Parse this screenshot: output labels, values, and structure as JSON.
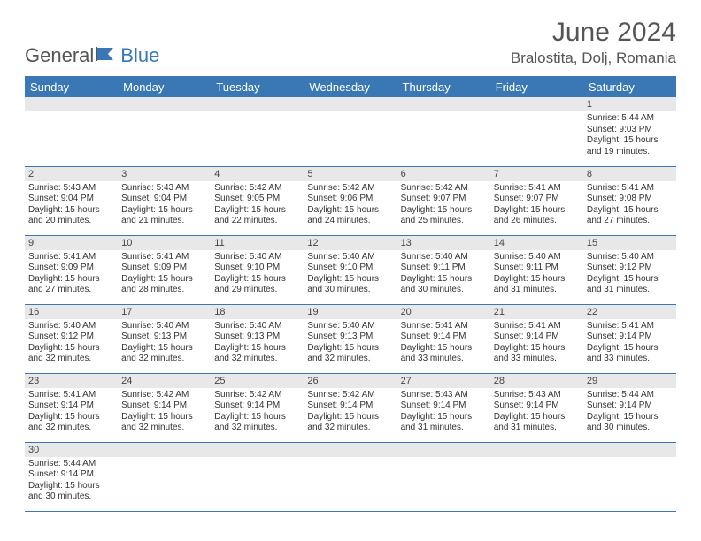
{
  "logo": {
    "text1": "General",
    "text2": "Blue"
  },
  "title": "June 2024",
  "location": "Bralostita, Dolj, Romania",
  "header_bg": "#3a78b5",
  "header_fg": "#ffffff",
  "daynum_bg": "#e8e8e8",
  "border_color": "#3a78b5",
  "weekdays": [
    "Sunday",
    "Monday",
    "Tuesday",
    "Wednesday",
    "Thursday",
    "Friday",
    "Saturday"
  ],
  "weeks": [
    [
      null,
      null,
      null,
      null,
      null,
      null,
      {
        "n": "1",
        "sr": "Sunrise: 5:44 AM",
        "ss": "Sunset: 9:03 PM",
        "d1": "Daylight: 15 hours",
        "d2": "and 19 minutes."
      }
    ],
    [
      {
        "n": "2",
        "sr": "Sunrise: 5:43 AM",
        "ss": "Sunset: 9:04 PM",
        "d1": "Daylight: 15 hours",
        "d2": "and 20 minutes."
      },
      {
        "n": "3",
        "sr": "Sunrise: 5:43 AM",
        "ss": "Sunset: 9:04 PM",
        "d1": "Daylight: 15 hours",
        "d2": "and 21 minutes."
      },
      {
        "n": "4",
        "sr": "Sunrise: 5:42 AM",
        "ss": "Sunset: 9:05 PM",
        "d1": "Daylight: 15 hours",
        "d2": "and 22 minutes."
      },
      {
        "n": "5",
        "sr": "Sunrise: 5:42 AM",
        "ss": "Sunset: 9:06 PM",
        "d1": "Daylight: 15 hours",
        "d2": "and 24 minutes."
      },
      {
        "n": "6",
        "sr": "Sunrise: 5:42 AM",
        "ss": "Sunset: 9:07 PM",
        "d1": "Daylight: 15 hours",
        "d2": "and 25 minutes."
      },
      {
        "n": "7",
        "sr": "Sunrise: 5:41 AM",
        "ss": "Sunset: 9:07 PM",
        "d1": "Daylight: 15 hours",
        "d2": "and 26 minutes."
      },
      {
        "n": "8",
        "sr": "Sunrise: 5:41 AM",
        "ss": "Sunset: 9:08 PM",
        "d1": "Daylight: 15 hours",
        "d2": "and 27 minutes."
      }
    ],
    [
      {
        "n": "9",
        "sr": "Sunrise: 5:41 AM",
        "ss": "Sunset: 9:09 PM",
        "d1": "Daylight: 15 hours",
        "d2": "and 27 minutes."
      },
      {
        "n": "10",
        "sr": "Sunrise: 5:41 AM",
        "ss": "Sunset: 9:09 PM",
        "d1": "Daylight: 15 hours",
        "d2": "and 28 minutes."
      },
      {
        "n": "11",
        "sr": "Sunrise: 5:40 AM",
        "ss": "Sunset: 9:10 PM",
        "d1": "Daylight: 15 hours",
        "d2": "and 29 minutes."
      },
      {
        "n": "12",
        "sr": "Sunrise: 5:40 AM",
        "ss": "Sunset: 9:10 PM",
        "d1": "Daylight: 15 hours",
        "d2": "and 30 minutes."
      },
      {
        "n": "13",
        "sr": "Sunrise: 5:40 AM",
        "ss": "Sunset: 9:11 PM",
        "d1": "Daylight: 15 hours",
        "d2": "and 30 minutes."
      },
      {
        "n": "14",
        "sr": "Sunrise: 5:40 AM",
        "ss": "Sunset: 9:11 PM",
        "d1": "Daylight: 15 hours",
        "d2": "and 31 minutes."
      },
      {
        "n": "15",
        "sr": "Sunrise: 5:40 AM",
        "ss": "Sunset: 9:12 PM",
        "d1": "Daylight: 15 hours",
        "d2": "and 31 minutes."
      }
    ],
    [
      {
        "n": "16",
        "sr": "Sunrise: 5:40 AM",
        "ss": "Sunset: 9:12 PM",
        "d1": "Daylight: 15 hours",
        "d2": "and 32 minutes."
      },
      {
        "n": "17",
        "sr": "Sunrise: 5:40 AM",
        "ss": "Sunset: 9:13 PM",
        "d1": "Daylight: 15 hours",
        "d2": "and 32 minutes."
      },
      {
        "n": "18",
        "sr": "Sunrise: 5:40 AM",
        "ss": "Sunset: 9:13 PM",
        "d1": "Daylight: 15 hours",
        "d2": "and 32 minutes."
      },
      {
        "n": "19",
        "sr": "Sunrise: 5:40 AM",
        "ss": "Sunset: 9:13 PM",
        "d1": "Daylight: 15 hours",
        "d2": "and 32 minutes."
      },
      {
        "n": "20",
        "sr": "Sunrise: 5:41 AM",
        "ss": "Sunset: 9:14 PM",
        "d1": "Daylight: 15 hours",
        "d2": "and 33 minutes."
      },
      {
        "n": "21",
        "sr": "Sunrise: 5:41 AM",
        "ss": "Sunset: 9:14 PM",
        "d1": "Daylight: 15 hours",
        "d2": "and 33 minutes."
      },
      {
        "n": "22",
        "sr": "Sunrise: 5:41 AM",
        "ss": "Sunset: 9:14 PM",
        "d1": "Daylight: 15 hours",
        "d2": "and 33 minutes."
      }
    ],
    [
      {
        "n": "23",
        "sr": "Sunrise: 5:41 AM",
        "ss": "Sunset: 9:14 PM",
        "d1": "Daylight: 15 hours",
        "d2": "and 32 minutes."
      },
      {
        "n": "24",
        "sr": "Sunrise: 5:42 AM",
        "ss": "Sunset: 9:14 PM",
        "d1": "Daylight: 15 hours",
        "d2": "and 32 minutes."
      },
      {
        "n": "25",
        "sr": "Sunrise: 5:42 AM",
        "ss": "Sunset: 9:14 PM",
        "d1": "Daylight: 15 hours",
        "d2": "and 32 minutes."
      },
      {
        "n": "26",
        "sr": "Sunrise: 5:42 AM",
        "ss": "Sunset: 9:14 PM",
        "d1": "Daylight: 15 hours",
        "d2": "and 32 minutes."
      },
      {
        "n": "27",
        "sr": "Sunrise: 5:43 AM",
        "ss": "Sunset: 9:14 PM",
        "d1": "Daylight: 15 hours",
        "d2": "and 31 minutes."
      },
      {
        "n": "28",
        "sr": "Sunrise: 5:43 AM",
        "ss": "Sunset: 9:14 PM",
        "d1": "Daylight: 15 hours",
        "d2": "and 31 minutes."
      },
      {
        "n": "29",
        "sr": "Sunrise: 5:44 AM",
        "ss": "Sunset: 9:14 PM",
        "d1": "Daylight: 15 hours",
        "d2": "and 30 minutes."
      }
    ],
    [
      {
        "n": "30",
        "sr": "Sunrise: 5:44 AM",
        "ss": "Sunset: 9:14 PM",
        "d1": "Daylight: 15 hours",
        "d2": "and 30 minutes."
      },
      null,
      null,
      null,
      null,
      null,
      null
    ]
  ]
}
